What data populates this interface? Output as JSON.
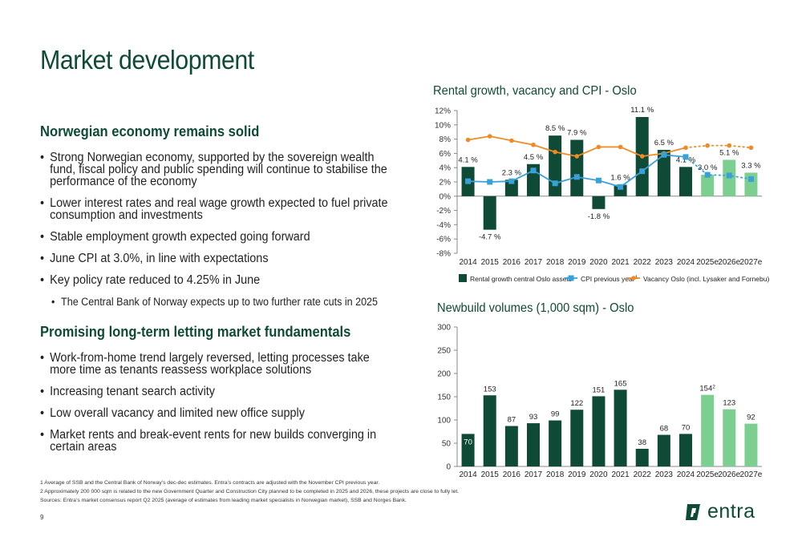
{
  "page": {
    "title": "Market development",
    "page_number": "9",
    "logo_text": "entra"
  },
  "left": {
    "section1": {
      "heading": "Norwegian economy remains solid",
      "bullets": [
        "Strong Norwegian economy, supported by the sovereign wealth fund, fiscal policy and public spending will continue to stabilise the performance of the economy",
        "Lower interest rates and real wage growth expected to fuel private consumption and investments",
        "Stable employment growth expected going forward",
        "June CPI at 3.0%, in line with expectations",
        "Key policy rate reduced to 4.25% in June"
      ],
      "sub_bullet": "The Central Bank of Norway expects up to two further rate cuts in 2025"
    },
    "section2": {
      "heading": "Promising long-term letting market fundamentals",
      "bullets": [
        "Work-from-home trend largely reversed, letting processes take more time as tenants reassess workplace solutions",
        "Increasing tenant search activity",
        "Low overall vacancy and limited new office supply",
        "Market rents and break-event rents for new builds converging in certain areas"
      ]
    }
  },
  "footnotes": [
    "1 Average of SSB and the Central Bank of Norway’s dec-dec estimates. Entra’s contracts are adjusted with the November CPI previous year.",
    "2 Approximately 200 000 sqm is related to the new Government Quarter and Construction City planned to be completed in 2025 and 2026, these projects are close to fully let.",
    "Sources: Entra’s market consensus report Q2 2025 (average of estimates from leading market specialists in Norwegian market), SSB and Norges Bank."
  ],
  "colors": {
    "brand_dark_green": "#0e4a36",
    "bar_actual": "#0e4a36",
    "bar_estimate": "#7dcf91",
    "cpi": "#3aa0d8",
    "vacancy": "#f08a24"
  },
  "chart_data": [
    {
      "type": "bar",
      "title": "Rental growth, vacancy and CPI - Oslo",
      "categories": [
        "2014",
        "2015",
        "2016",
        "2017",
        "2018",
        "2019",
        "2020",
        "2021",
        "2022",
        "2023",
        "2024",
        "2025e",
        "2026e",
        "2027e"
      ],
      "ylim": [
        -8,
        12
      ],
      "yticks": [
        -8,
        -6,
        -4,
        -2,
        0,
        2,
        4,
        6,
        8,
        10,
        12
      ],
      "ytick_labels": [
        "-8%",
        "-6%",
        "-4%",
        "-2%",
        "0%",
        "2%",
        "4%",
        "6%",
        "8%",
        "10%",
        "12%"
      ],
      "estimate_from_index": 11,
      "series": [
        {
          "name": "Rental growth central Oslo assets",
          "kind": "bar",
          "values": [
            4.1,
            -4.7,
            2.3,
            4.5,
            8.5,
            7.9,
            -1.8,
            1.6,
            11.1,
            6.5,
            4.1,
            3.0,
            5.1,
            3.3
          ],
          "labels": [
            "4.1 %",
            "-4.7 %",
            "2.3 %",
            "4.5 %",
            "8.5 %",
            "7.9 %",
            "-1.8 %",
            "1.6 %",
            "11.1 %",
            "6.5 %",
            "4.1 %",
            "3.0 %",
            "5.1 %",
            "3.3 %"
          ]
        },
        {
          "name": "CPI previous year",
          "name_superscript": "1",
          "kind": "line",
          "values": [
            2.1,
            2.0,
            2.1,
            3.6,
            1.8,
            2.7,
            2.2,
            1.3,
            3.5,
            5.8,
            5.5,
            3.0,
            2.9,
            2.4
          ]
        },
        {
          "name": "Vacancy Oslo (incl. Lysaker and Fornebu)",
          "kind": "line",
          "values": [
            7.9,
            8.4,
            7.8,
            7.2,
            6.2,
            5.6,
            6.9,
            6.9,
            5.6,
            6.0,
            6.8,
            7.1,
            7.1,
            6.8
          ]
        }
      ],
      "grid": false,
      "legend": "bottom"
    },
    {
      "type": "bar",
      "title": "Newbuild volumes (1,000 sqm) - Oslo",
      "categories": [
        "2014",
        "2015",
        "2016",
        "2017",
        "2018",
        "2019",
        "2020",
        "2021",
        "2022",
        "2023",
        "2024",
        "2025e",
        "2026e",
        "2027e"
      ],
      "ylim": [
        0,
        300
      ],
      "yticks": [
        0,
        50,
        100,
        150,
        200,
        250,
        300
      ],
      "ytick_labels": [
        "0",
        "50",
        "100",
        "150",
        "200",
        "250",
        "300"
      ],
      "estimate_from_index": 11,
      "values": [
        70,
        153,
        87,
        93,
        99,
        122,
        151,
        165,
        38,
        68,
        70,
        154,
        123,
        92
      ],
      "labels": [
        "70",
        "153",
        "87",
        "93",
        "99",
        "122",
        "151",
        "165",
        "38",
        "68",
        "70",
        "154",
        "123",
        "92"
      ],
      "label_superscripts": [
        "",
        "",
        "",
        "",
        "",
        "",
        "",
        "",
        "",
        "",
        "",
        "2",
        "",
        ""
      ],
      "grid": false,
      "legend": "none"
    }
  ]
}
